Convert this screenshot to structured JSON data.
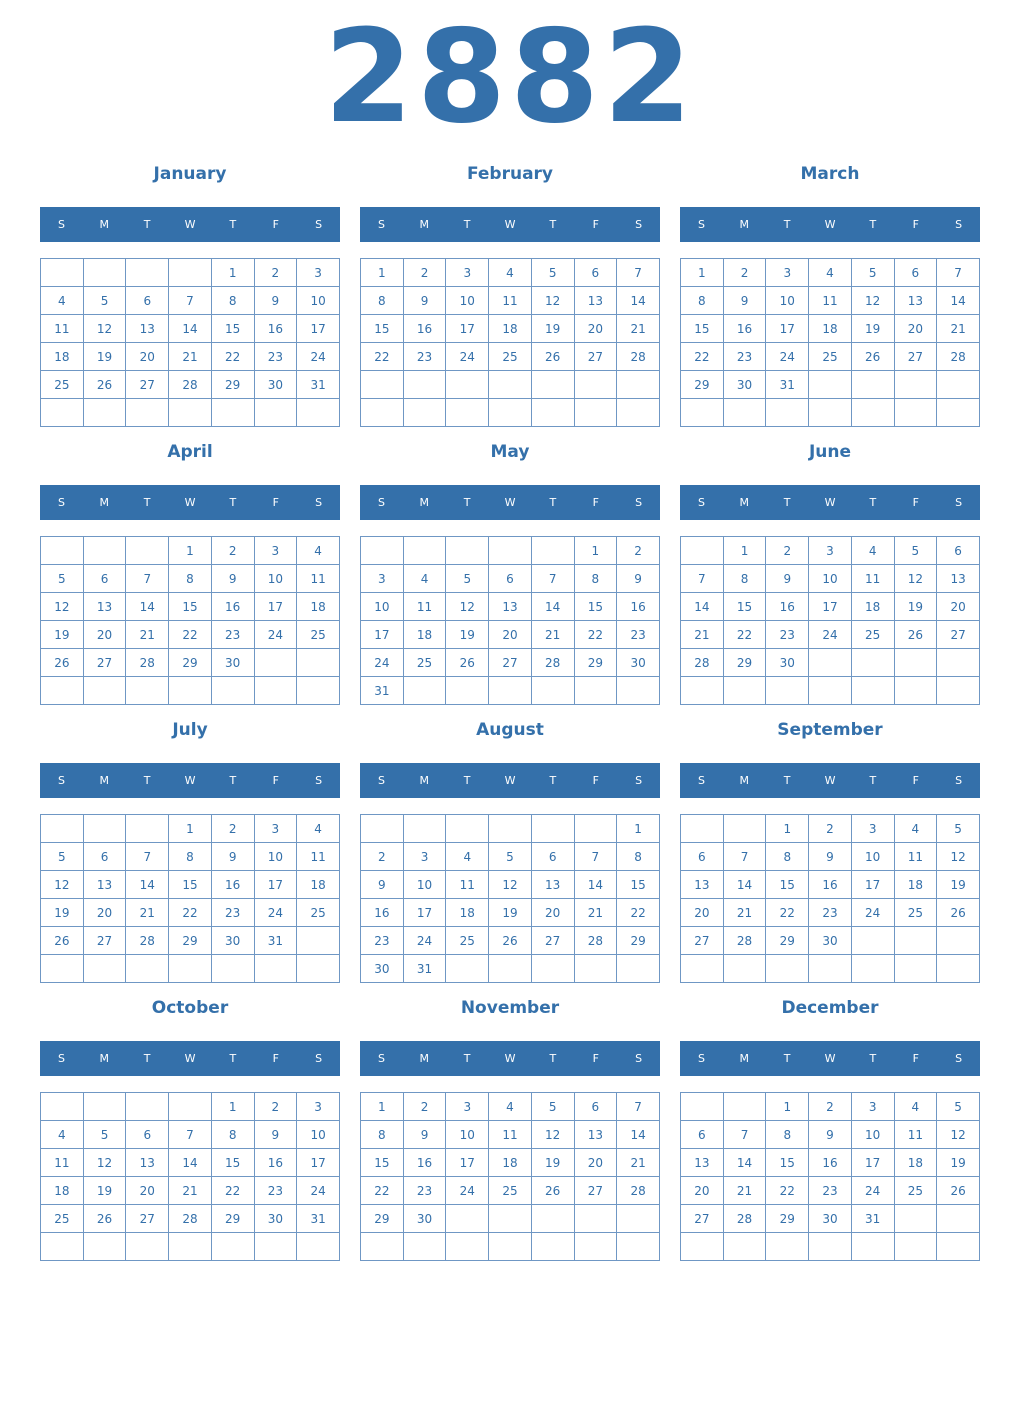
{
  "year": "2882",
  "weekday_labels": [
    "S",
    "M",
    "T",
    "W",
    "T",
    "F",
    "S"
  ],
  "colors": {
    "accent": "#3470aa",
    "header_text": "#ffffff"
  },
  "months": [
    {
      "name": "January",
      "weeks": [
        [
          "",
          "",
          "",
          "",
          1,
          2,
          3
        ],
        [
          4,
          5,
          6,
          7,
          8,
          9,
          10
        ],
        [
          11,
          12,
          13,
          14,
          15,
          16,
          17
        ],
        [
          18,
          19,
          20,
          21,
          22,
          23,
          24
        ],
        [
          25,
          26,
          27,
          28,
          29,
          30,
          31
        ],
        [
          "",
          "",
          "",
          "",
          "",
          "",
          ""
        ]
      ]
    },
    {
      "name": "February",
      "weeks": [
        [
          1,
          2,
          3,
          4,
          5,
          6,
          7
        ],
        [
          8,
          9,
          10,
          11,
          12,
          13,
          14
        ],
        [
          15,
          16,
          17,
          18,
          19,
          20,
          21
        ],
        [
          22,
          23,
          24,
          25,
          26,
          27,
          28
        ],
        [
          "",
          "",
          "",
          "",
          "",
          "",
          ""
        ],
        [
          "",
          "",
          "",
          "",
          "",
          "",
          ""
        ]
      ]
    },
    {
      "name": "March",
      "weeks": [
        [
          1,
          2,
          3,
          4,
          5,
          6,
          7
        ],
        [
          8,
          9,
          10,
          11,
          12,
          13,
          14
        ],
        [
          15,
          16,
          17,
          18,
          19,
          20,
          21
        ],
        [
          22,
          23,
          24,
          25,
          26,
          27,
          28
        ],
        [
          29,
          30,
          31,
          "",
          "",
          "",
          ""
        ],
        [
          "",
          "",
          "",
          "",
          "",
          "",
          ""
        ]
      ]
    },
    {
      "name": "April",
      "weeks": [
        [
          "",
          "",
          "",
          1,
          2,
          3,
          4
        ],
        [
          5,
          6,
          7,
          8,
          9,
          10,
          11
        ],
        [
          12,
          13,
          14,
          15,
          16,
          17,
          18
        ],
        [
          19,
          20,
          21,
          22,
          23,
          24,
          25
        ],
        [
          26,
          27,
          28,
          29,
          30,
          "",
          ""
        ],
        [
          "",
          "",
          "",
          "",
          "",
          "",
          ""
        ]
      ]
    },
    {
      "name": "May",
      "weeks": [
        [
          "",
          "",
          "",
          "",
          "",
          1,
          2
        ],
        [
          3,
          4,
          5,
          6,
          7,
          8,
          9
        ],
        [
          10,
          11,
          12,
          13,
          14,
          15,
          16
        ],
        [
          17,
          18,
          19,
          20,
          21,
          22,
          23
        ],
        [
          24,
          25,
          26,
          27,
          28,
          29,
          30
        ],
        [
          31,
          "",
          "",
          "",
          "",
          "",
          ""
        ]
      ]
    },
    {
      "name": "June",
      "weeks": [
        [
          "",
          1,
          2,
          3,
          4,
          5,
          6
        ],
        [
          7,
          8,
          9,
          10,
          11,
          12,
          13
        ],
        [
          14,
          15,
          16,
          17,
          18,
          19,
          20
        ],
        [
          21,
          22,
          23,
          24,
          25,
          26,
          27
        ],
        [
          28,
          29,
          30,
          "",
          "",
          "",
          ""
        ],
        [
          "",
          "",
          "",
          "",
          "",
          "",
          ""
        ]
      ]
    },
    {
      "name": "July",
      "weeks": [
        [
          "",
          "",
          "",
          1,
          2,
          3,
          4
        ],
        [
          5,
          6,
          7,
          8,
          9,
          10,
          11
        ],
        [
          12,
          13,
          14,
          15,
          16,
          17,
          18
        ],
        [
          19,
          20,
          21,
          22,
          23,
          24,
          25
        ],
        [
          26,
          27,
          28,
          29,
          30,
          31,
          ""
        ],
        [
          "",
          "",
          "",
          "",
          "",
          "",
          ""
        ]
      ]
    },
    {
      "name": "August",
      "weeks": [
        [
          "",
          "",
          "",
          "",
          "",
          "",
          1
        ],
        [
          2,
          3,
          4,
          5,
          6,
          7,
          8
        ],
        [
          9,
          10,
          11,
          12,
          13,
          14,
          15
        ],
        [
          16,
          17,
          18,
          19,
          20,
          21,
          22
        ],
        [
          23,
          24,
          25,
          26,
          27,
          28,
          29
        ],
        [
          30,
          31,
          "",
          "",
          "",
          "",
          ""
        ]
      ]
    },
    {
      "name": "September",
      "weeks": [
        [
          "",
          "",
          1,
          2,
          3,
          4,
          5
        ],
        [
          6,
          7,
          8,
          9,
          10,
          11,
          12
        ],
        [
          13,
          14,
          15,
          16,
          17,
          18,
          19
        ],
        [
          20,
          21,
          22,
          23,
          24,
          25,
          26
        ],
        [
          27,
          28,
          29,
          30,
          "",
          "",
          ""
        ],
        [
          "",
          "",
          "",
          "",
          "",
          "",
          ""
        ]
      ]
    },
    {
      "name": "October",
      "weeks": [
        [
          "",
          "",
          "",
          "",
          1,
          2,
          3
        ],
        [
          4,
          5,
          6,
          7,
          8,
          9,
          10
        ],
        [
          11,
          12,
          13,
          14,
          15,
          16,
          17
        ],
        [
          18,
          19,
          20,
          21,
          22,
          23,
          24
        ],
        [
          25,
          26,
          27,
          28,
          29,
          30,
          31
        ],
        [
          "",
          "",
          "",
          "",
          "",
          "",
          ""
        ]
      ]
    },
    {
      "name": "November",
      "weeks": [
        [
          1,
          2,
          3,
          4,
          5,
          6,
          7
        ],
        [
          8,
          9,
          10,
          11,
          12,
          13,
          14
        ],
        [
          15,
          16,
          17,
          18,
          19,
          20,
          21
        ],
        [
          22,
          23,
          24,
          25,
          26,
          27,
          28
        ],
        [
          29,
          30,
          "",
          "",
          "",
          "",
          ""
        ],
        [
          "",
          "",
          "",
          "",
          "",
          "",
          ""
        ]
      ]
    },
    {
      "name": "December",
      "weeks": [
        [
          "",
          "",
          1,
          2,
          3,
          4,
          5
        ],
        [
          6,
          7,
          8,
          9,
          10,
          11,
          12
        ],
        [
          13,
          14,
          15,
          16,
          17,
          18,
          19
        ],
        [
          20,
          21,
          22,
          23,
          24,
          25,
          26
        ],
        [
          27,
          28,
          29,
          30,
          31,
          "",
          ""
        ],
        [
          "",
          "",
          "",
          "",
          "",
          "",
          ""
        ]
      ]
    }
  ]
}
